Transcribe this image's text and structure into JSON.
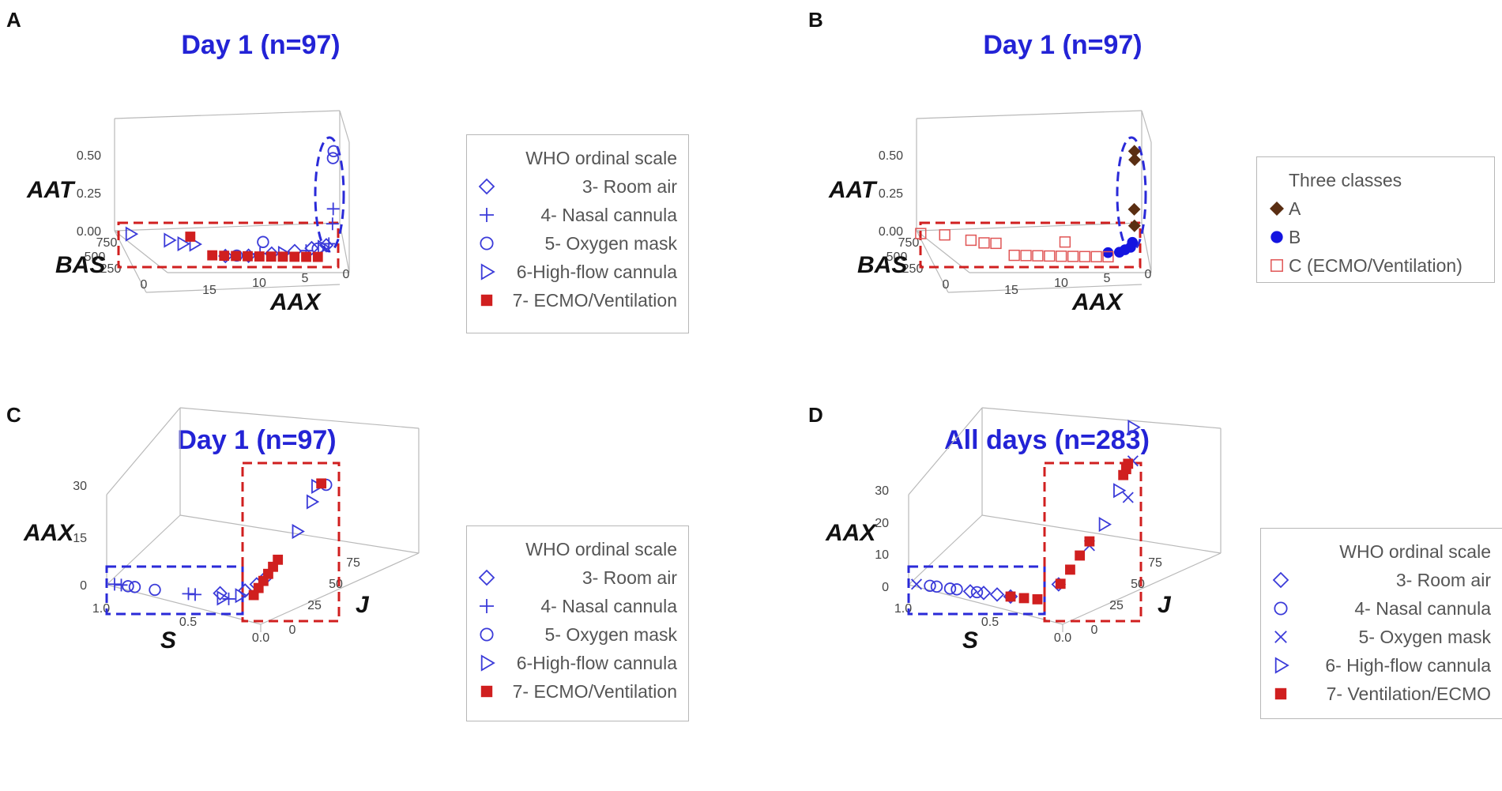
{
  "colors": {
    "blue": "#3b3bd9",
    "red": "#d01f1f",
    "brown": "#5a2e12",
    "title_blue": "#2323d6"
  },
  "panels": {
    "A": {
      "label": "A",
      "title": "Day 1 (n=97)",
      "axes": {
        "z_label": "AAT",
        "y_label": "BAS",
        "x_label": "AAX",
        "z_ticks": [
          "0.50",
          "0.25",
          "0.00"
        ],
        "y_ticks": [
          "750",
          "500",
          "250",
          "0"
        ],
        "x_ticks": [
          "15",
          "10",
          "5",
          "0"
        ]
      },
      "legend": {
        "title": "WHO ordinal scale",
        "items": [
          {
            "label": "3- Room air",
            "icon": "diamond-icon"
          },
          {
            "label": "4- Nasal cannula",
            "icon": "plus-icon"
          },
          {
            "label": "5- Oxygen mask",
            "icon": "circle-dot-icon"
          },
          {
            "label": "6-High-flow cannula",
            "icon": "triangle-right-icon"
          },
          {
            "label": "7- ECMO/Ventilation",
            "icon": "filled-square-icon"
          }
        ]
      }
    },
    "B": {
      "label": "B",
      "title": "Day 1 (n=97)",
      "axes": {
        "z_label": "AAT",
        "y_label": "BAS",
        "x_label": "AAX",
        "z_ticks": [
          "0.50",
          "0.25",
          "0.00"
        ],
        "y_ticks": [
          "750",
          "500",
          "250",
          "0"
        ],
        "x_ticks": [
          "15",
          "10",
          "5",
          "0"
        ]
      },
      "legend": {
        "title": "Three classes",
        "items": [
          {
            "label": "A",
            "icon": "filled-diamond-icon"
          },
          {
            "label": "B",
            "icon": "filled-circle-icon"
          },
          {
            "label": "C (ECMO/Ventilation)",
            "icon": "square-dot-icon"
          }
        ]
      }
    },
    "C": {
      "label": "C",
      "title": "Day 1 (n=97)",
      "axes": {
        "z_label": "AAX",
        "x_label": "S",
        "y_label": "J",
        "z_ticks": [
          "30",
          "15",
          "0"
        ],
        "x_ticks": [
          "1.0",
          "0.5",
          "0.0"
        ],
        "y_ticks": [
          "0",
          "25",
          "50",
          "75"
        ]
      },
      "legend": {
        "title": "WHO ordinal scale",
        "items": [
          {
            "label": "3- Room air",
            "icon": "diamond-icon"
          },
          {
            "label": "4- Nasal cannula",
            "icon": "plus-icon"
          },
          {
            "label": "5- Oxygen mask",
            "icon": "circle-dot-icon"
          },
          {
            "label": "6-High-flow cannula",
            "icon": "triangle-right-icon"
          },
          {
            "label": "7- ECMO/Ventilation",
            "icon": "filled-square-icon"
          }
        ]
      }
    },
    "D": {
      "label": "D",
      "title": "All days (n=283)",
      "axes": {
        "z_label": "AAX",
        "x_label": "S",
        "y_label": "J",
        "z_ticks": [
          "30",
          "20",
          "10",
          "0"
        ],
        "x_ticks": [
          "1.0",
          "0.5",
          "0.0"
        ],
        "y_ticks": [
          "0",
          "25",
          "50",
          "75"
        ]
      },
      "legend": {
        "title": "WHO ordinal scale",
        "items": [
          {
            "label": "3- Room air",
            "icon": "diamond-icon"
          },
          {
            "label": "4- Nasal cannula",
            "icon": "circle-dot-icon"
          },
          {
            "label": "5- Oxygen mask",
            "icon": "cross-icon"
          },
          {
            "label": "6- High-flow cannula",
            "icon": "triangle-right-icon"
          },
          {
            "label": "7- Ventilation/ECMO",
            "icon": "filled-square-icon"
          }
        ]
      }
    }
  },
  "chart_data": [
    {
      "panel": "A",
      "type": "scatter",
      "title": "Day 1 (n=97)",
      "xlabel": "AAX",
      "ylabel": "BAS",
      "zlabel": "AAT",
      "xlim": [
        0,
        18
      ],
      "ylim": [
        0,
        800
      ],
      "zlim": [
        0,
        0.55
      ],
      "series": [
        {
          "name": "3- Room air",
          "marker": "diamond",
          "points": [
            [
              1.2,
              300,
              0.05
            ],
            [
              2.5,
              280,
              0.04
            ],
            [
              4,
              260,
              0.03
            ],
            [
              6,
              250,
              0.02
            ],
            [
              8,
              245,
              0.01
            ],
            [
              10,
              240,
              0.01
            ]
          ]
        },
        {
          "name": "4- Nasal cannula",
          "marker": "plus",
          "points": [
            [
              0.5,
              350,
              0.22
            ],
            [
              0.6,
              330,
              0.15
            ],
            [
              1,
              290,
              0.06
            ],
            [
              3,
              270,
              0.03
            ],
            [
              7,
              250,
              0.02
            ]
          ]
        },
        {
          "name": "5- Oxygen mask",
          "marker": "circle",
          "points": [
            [
              0.4,
              380,
              0.5
            ],
            [
              0.5,
              360,
              0.47
            ],
            [
              6,
              600,
              0.0
            ],
            [
              2,
              270,
              0.04
            ],
            [
              9,
              250,
              0.01
            ]
          ]
        },
        {
          "name": "6-High-flow cannula",
          "marker": "triangle",
          "points": [
            [
              17,
              780,
              0.0
            ],
            [
              14,
              640,
              0.0
            ],
            [
              13,
              560,
              0.0
            ],
            [
              12,
              550,
              0.0
            ],
            [
              1.5,
              300,
              0.04
            ],
            [
              5,
              255,
              0.02
            ]
          ]
        },
        {
          "name": "7- ECMO/Ventilation",
          "marker": "square",
          "points": [
            [
              12,
              720,
              0.0
            ],
            [
              11,
              300,
              0.0
            ],
            [
              10,
              290,
              0.0
            ],
            [
              9,
              285,
              0.0
            ],
            [
              8,
              280,
              0.0
            ],
            [
              7,
              275,
              0.0
            ],
            [
              6,
              272,
              0.0
            ],
            [
              5,
              270,
              0.0
            ],
            [
              4,
              268,
              0.0
            ],
            [
              3,
              266,
              0.0
            ],
            [
              2,
              265,
              0.0
            ]
          ]
        }
      ]
    },
    {
      "panel": "B",
      "type": "scatter",
      "title": "Day 1 (n=97)",
      "xlabel": "AAX",
      "ylabel": "BAS",
      "zlabel": "AAT",
      "xlim": [
        0,
        18
      ],
      "ylim": [
        0,
        800
      ],
      "zlim": [
        0,
        0.55
      ],
      "series": [
        {
          "name": "A",
          "marker": "diamond-filled",
          "points": [
            [
              0.5,
              380,
              0.5
            ],
            [
              0.5,
              370,
              0.46
            ],
            [
              0.6,
              340,
              0.22
            ],
            [
              0.6,
              330,
              0.14
            ]
          ]
        },
        {
          "name": "B",
          "marker": "circle-filled",
          "points": [
            [
              0.8,
              320,
              0.06
            ],
            [
              1,
              300,
              0.04
            ],
            [
              1.5,
              290,
              0.03
            ],
            [
              2,
              280,
              0.02
            ],
            [
              3,
              270,
              0.02
            ]
          ]
        },
        {
          "name": "C (ECMO/Ventilation)",
          "marker": "square-dot",
          "points": [
            [
              18,
              790,
              0.0
            ],
            [
              16,
              760,
              0.0
            ],
            [
              14,
              640,
              0.0
            ],
            [
              13,
              580,
              0.0
            ],
            [
              12,
              570,
              0.0
            ],
            [
              6,
              600,
              0.0
            ],
            [
              11,
              300,
              0.0
            ],
            [
              10,
              295,
              0.0
            ],
            [
              9,
              290,
              0.0
            ],
            [
              8,
              285,
              0.0
            ],
            [
              7,
              280,
              0.0
            ],
            [
              6,
              276,
              0.0
            ],
            [
              5,
              272,
              0.0
            ],
            [
              4,
              270,
              0.0
            ],
            [
              3,
              268,
              0.0
            ]
          ]
        }
      ]
    },
    {
      "panel": "C",
      "type": "scatter",
      "title": "Day 1 (n=97)",
      "xlabel": "S",
      "ylabel": "J",
      "zlabel": "AAX",
      "xlim": [
        0,
        1
      ],
      "ylim": [
        0,
        90
      ],
      "zlim": [
        0,
        30
      ],
      "series": [
        {
          "name": "3- Room air",
          "marker": "diamond",
          "points": [
            [
              0.25,
              5,
              0.5
            ],
            [
              0.1,
              10,
              1
            ],
            [
              0.05,
              15,
              2
            ],
            [
              0.02,
              20,
              3
            ]
          ]
        },
        {
          "name": "4- Nasal cannula",
          "marker": "plus",
          "points": [
            [
              1.0,
              0,
              0.5
            ],
            [
              0.95,
              0,
              0.5
            ],
            [
              0.45,
              0,
              0.3
            ],
            [
              0.4,
              0,
              0.3
            ],
            [
              0.15,
              0,
              0.2
            ]
          ]
        },
        {
          "name": "5- Oxygen mask",
          "marker": "circle",
          "points": [
            [
              0.9,
              0,
              0.4
            ],
            [
              0.85,
              0,
              0.4
            ],
            [
              0.7,
              0,
              0.3
            ],
            [
              0.0,
              80,
              17
            ]
          ]
        },
        {
          "name": "6-High-flow cannula",
          "marker": "triangle",
          "points": [
            [
              0.0,
              70,
              18
            ],
            [
              0.0,
              65,
              15
            ],
            [
              0.0,
              50,
              10
            ],
            [
              0.2,
              0,
              0.2
            ],
            [
              0.1,
              5,
              0.5
            ]
          ]
        },
        {
          "name": "7- ECMO/Ventilation",
          "marker": "square",
          "points": [
            [
              0.0,
              75,
              18
            ],
            [
              0.0,
              30,
              6
            ],
            [
              0.0,
              25,
              5
            ],
            [
              0.0,
              20,
              4
            ],
            [
              0.0,
              15,
              3
            ],
            [
              0.0,
              10,
              2
            ],
            [
              0.0,
              5,
              1
            ]
          ]
        }
      ]
    },
    {
      "panel": "D",
      "type": "scatter",
      "title": "All days (n=283)",
      "xlabel": "S",
      "ylabel": "J",
      "zlabel": "AAX",
      "xlim": [
        0,
        1
      ],
      "ylim": [
        0,
        90
      ],
      "zlim": [
        0,
        30
      ],
      "series": [
        {
          "name": "3- Room air",
          "marker": "diamond",
          "points": [
            [
              0.6,
              0,
              0.3
            ],
            [
              0.5,
              0,
              0.3
            ],
            [
              0.4,
              0,
              0.3
            ],
            [
              0.3,
              0,
              0.2
            ],
            [
              0.05,
              15,
              2
            ]
          ]
        },
        {
          "name": "4- Nasal cannula",
          "marker": "circle",
          "points": [
            [
              0.9,
              0,
              0.5
            ],
            [
              0.85,
              0,
              0.5
            ],
            [
              0.75,
              0,
              0.4
            ],
            [
              0.7,
              0,
              0.4
            ],
            [
              0.55,
              0,
              0.3
            ]
          ]
        },
        {
          "name": "5- Oxygen mask",
          "marker": "cross",
          "points": [
            [
              1.0,
              0,
              0.5
            ],
            [
              0.0,
              85,
              22
            ],
            [
              0.0,
              80,
              14
            ],
            [
              0.0,
              40,
              8
            ]
          ]
        },
        {
          "name": "6- High-flow cannula",
          "marker": "triangle",
          "points": [
            [
              0.0,
              85,
              30
            ],
            [
              0.0,
              70,
              17
            ],
            [
              0.0,
              55,
              11
            ]
          ]
        },
        {
          "name": "7- Ventilation/ECMO",
          "marker": "square",
          "points": [
            [
              0.0,
              80,
              22
            ],
            [
              0.0,
              78,
              21
            ],
            [
              0.0,
              75,
              20
            ],
            [
              0.0,
              40,
              9
            ],
            [
              0.0,
              30,
              7
            ],
            [
              0.0,
              20,
              5
            ],
            [
              0.0,
              10,
              3
            ],
            [
              0.1,
              0,
              0.3
            ],
            [
              0.2,
              0,
              0.2
            ],
            [
              0.3,
              0,
              0.2
            ]
          ]
        }
      ]
    }
  ]
}
